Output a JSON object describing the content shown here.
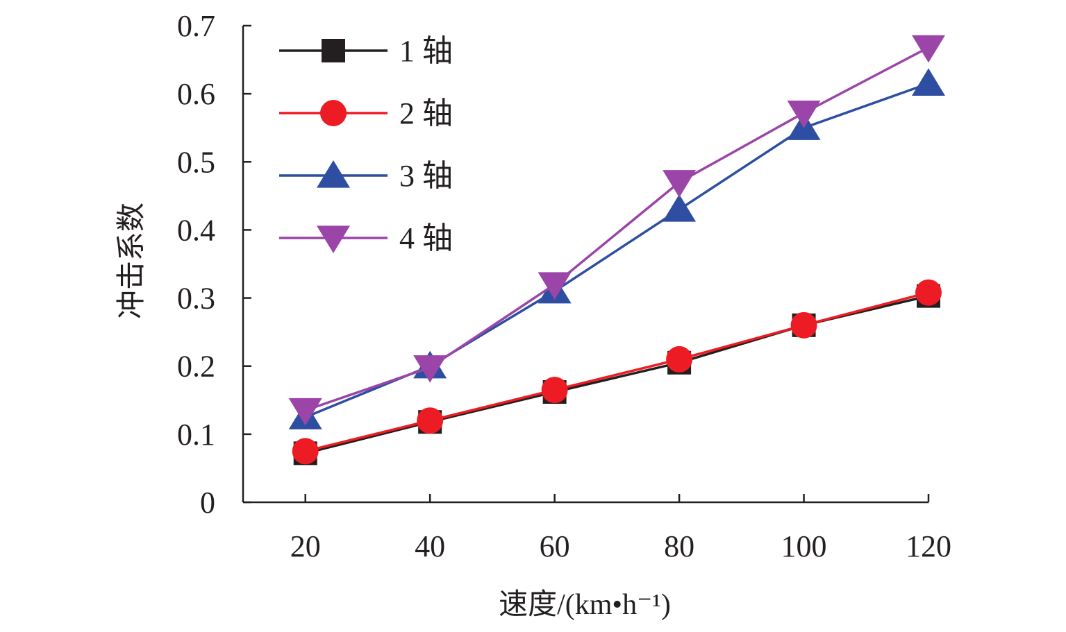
{
  "chart_data": {
    "type": "line",
    "title": "",
    "xlabel": "速度/(km•h⁻¹)",
    "ylabel": "冲击系数",
    "x": [
      20,
      40,
      60,
      80,
      100,
      120
    ],
    "x_tick_labels": [
      "20",
      "40",
      "60",
      "80",
      "100",
      "120"
    ],
    "xlim": [
      10,
      120
    ],
    "ylim": [
      0,
      0.7
    ],
    "y_ticks": [
      0,
      0.1,
      0.2,
      0.3,
      0.4,
      0.5,
      0.6,
      0.7
    ],
    "y_tick_labels": [
      "0",
      "0.1",
      "0.2",
      "0.3",
      "0.4",
      "0.5",
      "0.6",
      "0.7"
    ],
    "grid": false,
    "legend_position": "top-left",
    "series": [
      {
        "name": "1 轴",
        "values": [
          0.072,
          0.118,
          0.162,
          0.205,
          0.26,
          0.303
        ],
        "color": "#231f20",
        "marker": "square"
      },
      {
        "name": "2 轴",
        "values": [
          0.075,
          0.12,
          0.165,
          0.21,
          0.26,
          0.308
        ],
        "color": "#ed1c24",
        "marker": "circle"
      },
      {
        "name": "3 轴",
        "values": [
          0.125,
          0.2,
          0.31,
          0.43,
          0.55,
          0.615
        ],
        "color": "#2e4ea1",
        "marker": "triangle-up"
      },
      {
        "name": "4 轴",
        "values": [
          0.135,
          0.198,
          0.32,
          0.47,
          0.572,
          0.668
        ],
        "color": "#9b45a8",
        "marker": "triangle-down"
      }
    ]
  }
}
